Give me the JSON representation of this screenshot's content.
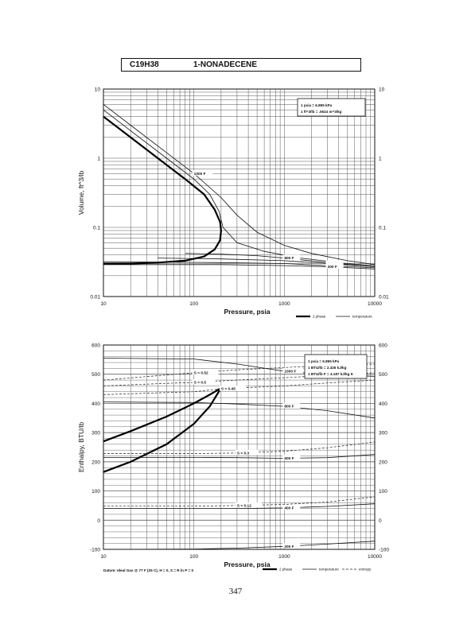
{
  "header": {
    "formula": "C19H38",
    "name": "1-NONADECENE"
  },
  "page_number": "347",
  "footnote": "Datum: Ideal Gas @ 77 F (25 C), H = 0, S = R ln P = 0",
  "chart_data": [
    {
      "type": "line",
      "scale": {
        "x": "log",
        "y": "log"
      },
      "xlabel": "Pressure,  psia",
      "ylabel": "Volume, ft^3/lb",
      "xlim": [
        10,
        10000
      ],
      "ylim": [
        0.01,
        10
      ],
      "x_ticks": [
        "10",
        "100",
        "1000",
        "10000"
      ],
      "y_ticks": [
        "0.01",
        "0.1",
        "1",
        "10"
      ],
      "conversions": [
        "1 psia  =  6.895 kPa",
        "1 ft^3/lb  =  .0624 m^3/kg"
      ],
      "legend": [
        "2 phase",
        "temperature"
      ],
      "series": [
        {
          "kind": "2 phase",
          "x": [
            10,
            20,
            40,
            80,
            130,
            170,
            195,
            200,
            195,
            170,
            130,
            80,
            40,
            20,
            10
          ],
          "values": [
            4.0,
            2.0,
            1.0,
            0.5,
            0.3,
            0.18,
            0.12,
            0.09,
            0.065,
            0.048,
            0.038,
            0.033,
            0.031,
            0.03,
            0.03
          ]
        },
        {
          "kind": "temperature",
          "label": "1000 F",
          "x": [
            10,
            20,
            50,
            100,
            200,
            300,
            500,
            1000,
            2000,
            5000,
            10000
          ],
          "values": [
            6.0,
            3.0,
            1.2,
            0.6,
            0.27,
            0.15,
            0.085,
            0.055,
            0.042,
            0.033,
            0.029
          ]
        },
        {
          "kind": "temperature",
          "label": "",
          "x": [
            10,
            20,
            50,
            100,
            150,
            190,
            210,
            300,
            600,
            1500,
            5000,
            10000
          ],
          "values": [
            5.0,
            2.5,
            1.0,
            0.5,
            0.3,
            0.17,
            0.1,
            0.06,
            0.045,
            0.036,
            0.03,
            0.028
          ]
        },
        {
          "kind": "temperature",
          "label": "800 F",
          "x": [
            80,
            200,
            500,
            1000,
            3000,
            10000
          ],
          "values": [
            0.042,
            0.041,
            0.039,
            0.036,
            0.031,
            0.027
          ]
        },
        {
          "kind": "temperature",
          "label": "600 F",
          "x": [
            40,
            200,
            1000,
            3000,
            10000
          ],
          "values": [
            0.036,
            0.035,
            0.033,
            0.03,
            0.027
          ]
        },
        {
          "kind": "temperature",
          "label": "400 F",
          "x": [
            10,
            200,
            1000,
            3000,
            10000
          ],
          "values": [
            0.032,
            0.031,
            0.03,
            0.028,
            0.026
          ]
        },
        {
          "kind": "temperature",
          "label": "200 F",
          "x": [
            10,
            200,
            1000,
            3000,
            10000
          ],
          "values": [
            0.029,
            0.029,
            0.028,
            0.027,
            0.025
          ]
        }
      ]
    },
    {
      "type": "line",
      "scale": {
        "x": "log",
        "y": "linear"
      },
      "xlabel": "Pressure,  psia",
      "ylabel": "Enthalpy, BTU/lb",
      "xlim": [
        10,
        10000
      ],
      "ylim": [
        -100,
        600
      ],
      "x_ticks": [
        "10",
        "100",
        "1000",
        "10000"
      ],
      "y_ticks": [
        "-100",
        "0",
        "100",
        "200",
        "300",
        "400",
        "500",
        "600"
      ],
      "conversions": [
        "1 psia  =  6.895 kPa",
        "1 BTU/lb  =  2.326 kJ/kg",
        "1 BTU/lb F  =  4.187 kJ/kg K"
      ],
      "legend": [
        "2 phase",
        "temperature",
        "entropy"
      ],
      "series": [
        {
          "kind": "2 phase",
          "x": [
            10,
            20,
            50,
            100,
            150,
            200
          ],
          "values": [
            270,
            305,
            355,
            400,
            430,
            453
          ]
        },
        {
          "kind": "2 phase",
          "x": [
            10,
            20,
            50,
            100,
            150,
            200
          ],
          "values": [
            165,
            200,
            260,
            330,
            390,
            453
          ]
        },
        {
          "kind": "temperature",
          "label": "1000 F",
          "x": [
            10,
            100,
            300,
            1000,
            3000,
            10000
          ],
          "values": [
            555,
            552,
            535,
            510,
            498,
            493
          ]
        },
        {
          "kind": "temperature",
          "label": "800 F",
          "x": [
            10,
            100,
            300,
            1000,
            3000,
            10000
          ],
          "values": [
            405,
            403,
            398,
            390,
            375,
            350
          ]
        },
        {
          "kind": "temperature",
          "label": "600 F",
          "x": [
            10,
            100,
            300,
            1000,
            3000,
            10000
          ],
          "values": [
            215,
            215,
            214,
            212,
            214,
            225
          ]
        },
        {
          "kind": "temperature",
          "label": "400 F",
          "x": [
            10,
            100,
            300,
            1000,
            3000,
            10000
          ],
          "values": [
            40,
            40,
            40,
            42,
            47,
            56
          ]
        },
        {
          "kind": "temperature",
          "label": "200 F",
          "x": [
            10,
            100,
            300,
            1000,
            3000,
            10000
          ],
          "values": [
            -100,
            -99,
            -96,
            -90,
            -82,
            -72
          ]
        },
        {
          "kind": "entropy",
          "label": "S = 0.52",
          "x": [
            10,
            30,
            100,
            300,
            1000,
            3000,
            10000
          ],
          "values": [
            480,
            492,
            505,
            515,
            523,
            530,
            535
          ]
        },
        {
          "kind": "entropy",
          "label": "S = 0.5",
          "x": [
            10,
            30,
            100,
            300,
            1000,
            3000,
            10000
          ],
          "values": [
            460,
            466,
            472,
            480,
            488,
            496,
            505
          ]
        },
        {
          "kind": "entropy",
          "label": "S = 0.45",
          "x": [
            10,
            100,
            200,
            1000,
            3000,
            10000
          ],
          "values": [
            430,
            440,
            450,
            460,
            470,
            480
          ]
        },
        {
          "kind": "entropy",
          "label": "S = 0.3",
          "x": [
            10,
            100,
            300,
            1000,
            3000,
            10000
          ],
          "values": [
            228,
            228,
            230,
            236,
            248,
            268
          ]
        },
        {
          "kind": "entropy",
          "label": "S = 0.12",
          "x": [
            10,
            100,
            300,
            1000,
            3000,
            10000
          ],
          "values": [
            48,
            48,
            50,
            54,
            62,
            80
          ]
        }
      ]
    }
  ]
}
